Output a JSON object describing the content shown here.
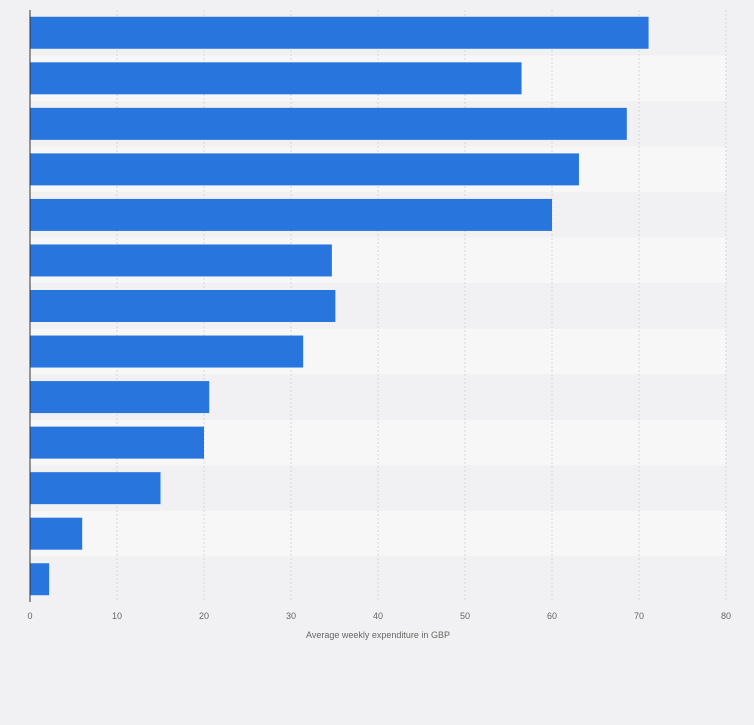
{
  "chart_data": {
    "type": "bar",
    "orientation": "horizontal",
    "title": "",
    "xlabel": "Average weekly expenditure in GBP",
    "ylabel": "",
    "categories": [
      "",
      "",
      "",
      "",
      "",
      "",
      "",
      "",
      "",
      "",
      "",
      "",
      ""
    ],
    "values": [
      71.1,
      56.5,
      68.6,
      63.1,
      60.0,
      34.7,
      35.1,
      31.4,
      20.6,
      20.0,
      15.0,
      6.0,
      2.2
    ],
    "xlim": [
      0,
      80
    ],
    "xticks": [
      "0",
      "10",
      "20",
      "30",
      "40",
      "50",
      "60",
      "70",
      "80"
    ],
    "grid": true,
    "legend": "none",
    "colors": {
      "bar": "#2876dd",
      "band_light": "#f7f7f8",
      "band_dark": "#f1f1f3",
      "grid": "#d8d8d8",
      "axis": "#333333",
      "tick_text": "#666666"
    }
  }
}
